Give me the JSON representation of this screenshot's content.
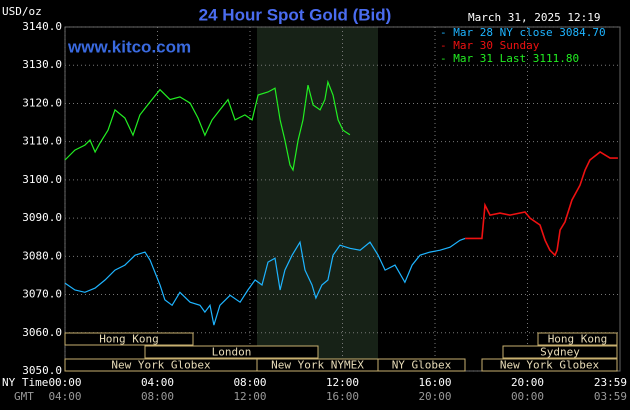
{
  "chart_data": {
    "type": "line",
    "title": "24 Hour Spot Gold (Bid)",
    "unit_label": "USD/oz",
    "timestamp": "March 31, 2025 12:19",
    "watermark": "www.kitco.com",
    "x_row_labels": [
      "NY Time",
      "GMT"
    ],
    "xlim": [
      0,
      24
    ],
    "xticks": [
      {
        "value": 0,
        "label": "00:00"
      },
      {
        "value": 4,
        "label": "04:00"
      },
      {
        "value": 8,
        "label": "08:00"
      },
      {
        "value": 12,
        "label": "12:00"
      },
      {
        "value": 16,
        "label": "16:00"
      },
      {
        "value": 20,
        "label": "20:00"
      },
      {
        "value": 23.98,
        "label": "23:59"
      }
    ],
    "gmt_tick_labels": [
      "04:00",
      "08:00",
      "12:00",
      "16:00",
      "20:00",
      "00:00",
      "03:59"
    ],
    "ylim": [
      3050,
      3140
    ],
    "yticks": [
      {
        "value": 3050,
        "label": "3050.0"
      },
      {
        "value": 3060,
        "label": "3060.0"
      },
      {
        "value": 3070,
        "label": "3070.0"
      },
      {
        "value": 3080,
        "label": "3080.0"
      },
      {
        "value": 3090,
        "label": "3090.0"
      },
      {
        "value": 3100,
        "label": "3100.0"
      },
      {
        "value": 3110,
        "label": "3110.0"
      },
      {
        "value": 3120,
        "label": "3120.0"
      },
      {
        "value": 3130,
        "label": "3130.0"
      },
      {
        "value": 3140,
        "label": "3140.0"
      }
    ],
    "grid": true,
    "sessions": [
      "Hong Kong",
      "London",
      "New York Globex",
      "New York NYMEX",
      "NY Globex",
      "Sydney",
      "Hong Kong",
      "New York Globex"
    ],
    "series": [
      {
        "name": "- Mar 28 NY close 3084.70",
        "color": "#1eb4ff",
        "x": [
          0,
          0.43,
          0.86,
          1.3,
          1.73,
          2.16,
          2.59,
          3.03,
          3.46,
          3.68,
          4.11,
          4.32,
          4.63,
          4.97,
          5.41,
          5.84,
          6.05,
          6.27,
          6.44,
          6.7,
          7.14,
          7.57,
          7.91,
          8.22,
          8.52,
          8.78,
          9.08,
          9.3,
          9.51,
          9.82,
          10.16,
          10.38,
          10.68,
          10.85,
          11.11,
          11.37,
          11.59,
          11.89,
          12.32,
          12.76,
          13.19,
          13.54,
          13.84,
          14.27,
          14.7,
          15.01,
          15.35,
          15.78,
          16.22,
          16.65,
          17.08,
          17.3
        ],
        "values": [
          3073.0,
          3071.2,
          3070.6,
          3071.7,
          3073.8,
          3076.4,
          3077.7,
          3080.3,
          3081.1,
          3079.0,
          3072.5,
          3068.6,
          3067.2,
          3070.6,
          3068.0,
          3067.2,
          3065.4,
          3067.2,
          3062.0,
          3067.2,
          3069.8,
          3068.0,
          3071.2,
          3073.8,
          3072.5,
          3078.5,
          3079.5,
          3071.2,
          3076.4,
          3080.3,
          3083.7,
          3076.4,
          3072.5,
          3069.1,
          3072.5,
          3073.8,
          3080.3,
          3082.9,
          3082.1,
          3081.6,
          3083.7,
          3080.3,
          3076.4,
          3077.7,
          3073.2,
          3077.7,
          3080.3,
          3081.1,
          3081.6,
          3082.4,
          3084.2,
          3084.7
        ]
      },
      {
        "name": "- Mar 30 Sunday",
        "color": "#ee1111",
        "x": [
          17.3,
          18.03,
          18.16,
          18.38,
          18.81,
          19.24,
          19.89,
          20.11,
          20.54,
          20.76,
          20.97,
          21.19,
          21.28,
          21.41,
          21.62,
          21.92,
          22.27,
          22.49,
          22.7,
          23.14,
          23.57,
          23.91
        ],
        "values": [
          3084.7,
          3084.7,
          3093.4,
          3090.8,
          3091.3,
          3090.8,
          3091.6,
          3090.0,
          3088.2,
          3084.2,
          3081.6,
          3080.3,
          3081.6,
          3086.9,
          3089.0,
          3094.7,
          3098.6,
          3102.6,
          3105.2,
          3107.3,
          3105.7,
          3105.7
        ]
      },
      {
        "name": "- Mar 31 Last 3111.80",
        "color": "#22ee22",
        "x": [
          0,
          0.43,
          0.86,
          1.08,
          1.3,
          1.51,
          1.86,
          2.16,
          2.59,
          2.94,
          3.24,
          3.68,
          4.11,
          4.54,
          4.97,
          5.41,
          5.75,
          6.05,
          6.36,
          6.7,
          7.05,
          7.35,
          7.78,
          8.09,
          8.35,
          8.78,
          9.08,
          9.3,
          9.51,
          9.73,
          9.86,
          10.08,
          10.29,
          10.51,
          10.73,
          11.03,
          11.24,
          11.37,
          11.59,
          11.81,
          12.02,
          12.32
        ],
        "values": [
          3105.2,
          3107.8,
          3109.1,
          3110.4,
          3107.3,
          3109.6,
          3113.0,
          3118.3,
          3116.2,
          3111.7,
          3117.0,
          3120.4,
          3123.6,
          3121.0,
          3121.7,
          3120.1,
          3116.2,
          3111.7,
          3115.7,
          3118.3,
          3121.0,
          3115.7,
          3117.0,
          3115.7,
          3122.2,
          3123.0,
          3124.0,
          3115.7,
          3110.4,
          3103.9,
          3102.6,
          3110.4,
          3115.7,
          3124.8,
          3119.6,
          3118.3,
          3121.0,
          3125.6,
          3122.2,
          3115.7,
          3113.0,
          3111.8
        ]
      }
    ]
  }
}
